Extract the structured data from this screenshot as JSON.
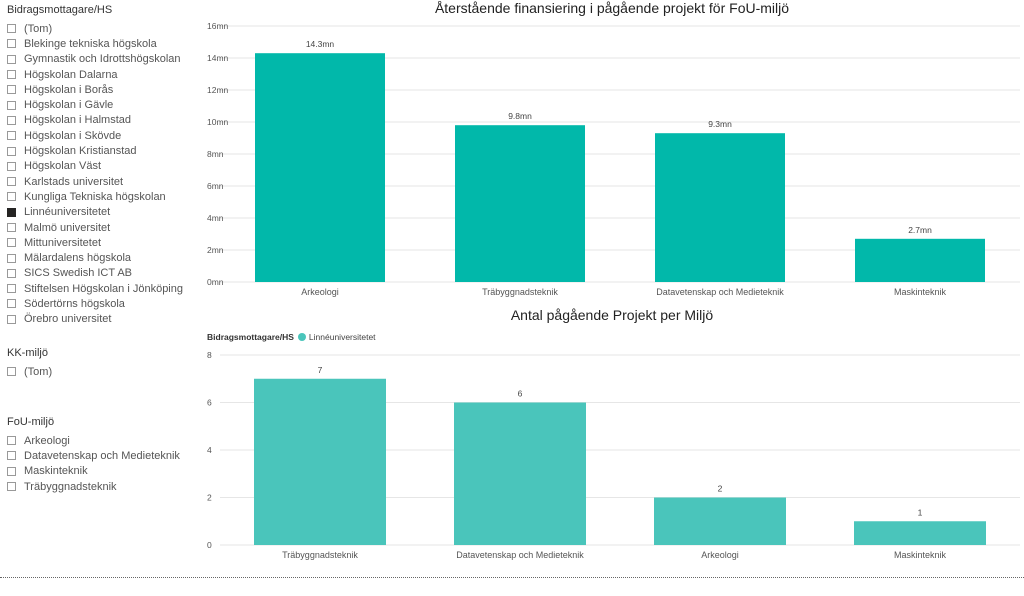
{
  "slicers": {
    "recipient": {
      "title": "Bidragsmottagare/HS",
      "items": [
        {
          "label": "(Tom)",
          "checked": false
        },
        {
          "label": "Blekinge tekniska högskola",
          "checked": false
        },
        {
          "label": "Gymnastik och Idrottshögskolan",
          "checked": false
        },
        {
          "label": "Högskolan Dalarna",
          "checked": false
        },
        {
          "label": "Högskolan i Borås",
          "checked": false
        },
        {
          "label": "Högskolan i Gävle",
          "checked": false
        },
        {
          "label": "Högskolan i Halmstad",
          "checked": false
        },
        {
          "label": "Högskolan i Skövde",
          "checked": false
        },
        {
          "label": "Högskolan Kristianstad",
          "checked": false
        },
        {
          "label": "Högskolan Väst",
          "checked": false
        },
        {
          "label": "Karlstads universitet",
          "checked": false
        },
        {
          "label": "Kungliga Tekniska högskolan",
          "checked": false
        },
        {
          "label": "Linnéuniversitetet",
          "checked": true
        },
        {
          "label": "Malmö universitet",
          "checked": false
        },
        {
          "label": "Mittuniversitetet",
          "checked": false
        },
        {
          "label": "Mälardalens högskola",
          "checked": false
        },
        {
          "label": "SICS Swedish ICT AB",
          "checked": false
        },
        {
          "label": "Stiftelsen Högskolan i Jönköping",
          "checked": false
        },
        {
          "label": "Södertörns högskola",
          "checked": false
        },
        {
          "label": "Örebro universitet",
          "checked": false
        }
      ]
    },
    "kk": {
      "title": "KK-miljö",
      "items": [
        {
          "label": "(Tom)",
          "checked": false
        }
      ]
    },
    "fou": {
      "title": "FoU-miljö",
      "items": [
        {
          "label": "Arkeologi",
          "checked": false
        },
        {
          "label": "Datavetenskap och Medieteknik",
          "checked": false
        },
        {
          "label": "Maskinteknik",
          "checked": false
        },
        {
          "label": "Träbyggnadsteknik",
          "checked": false
        }
      ]
    }
  },
  "colors": {
    "bar1": "#01B8AA",
    "bar2": "#4AC5BB",
    "grid": "#e6e6e6",
    "checked": "#252423"
  },
  "chart_data": [
    {
      "type": "bar",
      "title": "Återstående finansiering i pågående projekt för FoU-miljö",
      "categories": [
        "Arkeologi",
        "Träbyggnadsteknik",
        "Datavetenskap och Medieteknik",
        "Maskinteknik"
      ],
      "values": [
        14.3,
        9.8,
        9.3,
        2.7
      ],
      "data_labels": [
        "14.3mn",
        "9.8mn",
        "9.3mn",
        "2.7mn"
      ],
      "yticks": [
        0,
        2,
        4,
        6,
        8,
        10,
        12,
        14,
        16
      ],
      "ytick_labels": [
        "0mn",
        "2mn",
        "4mn",
        "6mn",
        "8mn",
        "10mn",
        "12mn",
        "14mn",
        "16mn"
      ],
      "ylim": [
        0,
        16
      ],
      "grid": true
    },
    {
      "type": "bar",
      "title": "Antal pågående Projekt per Miljö",
      "legend_title": "Bidragsmottagare/HS",
      "legend_placement": "top-left",
      "categories": [
        "Träbyggnadsteknik",
        "Datavetenskap och Medieteknik",
        "Arkeologi",
        "Maskinteknik"
      ],
      "series": [
        {
          "name": "Linnéuniversitetet",
          "values": [
            7,
            6,
            2,
            1
          ]
        }
      ],
      "data_labels": [
        "7",
        "6",
        "2",
        "1"
      ],
      "yticks": [
        0,
        2,
        4,
        6,
        8
      ],
      "ytick_labels": [
        "0",
        "2",
        "4",
        "6",
        "8"
      ],
      "ylim": [
        0,
        8
      ],
      "grid": true
    }
  ]
}
